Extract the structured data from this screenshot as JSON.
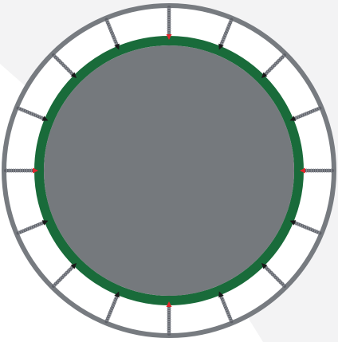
{
  "colors": {
    "background": "#ffffff",
    "backdrop_shape": "#f3f3f4",
    "frame": "#777b80",
    "frame_gap": "#ffffff",
    "pad": "#196b3a",
    "mat": "#75797d",
    "spring": "#8c8f96",
    "spring_dark": "#5e6168",
    "hook_red": "#e0262b",
    "hook_black": "#1a1a1a"
  },
  "springs": {
    "count": 16,
    "red_hook_angles_deg": [
      0,
      90,
      180,
      270
    ]
  }
}
